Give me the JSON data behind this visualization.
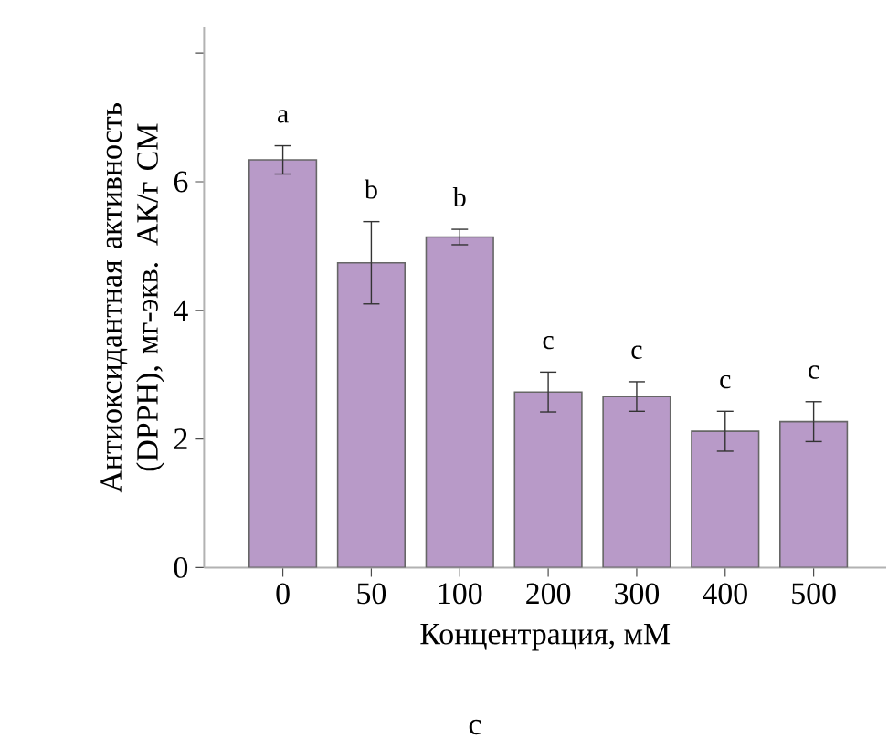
{
  "chart_data": {
    "type": "bar",
    "xlabel": "Концентрация, мМ",
    "ylabel": "Антиоксидантная активность (DPPH), мг-экв. АК/г СМ",
    "categories": [
      "0",
      "50",
      "100",
      "200",
      "300",
      "400",
      "500"
    ],
    "values": [
      6.34,
      4.74,
      5.14,
      2.73,
      2.66,
      2.12,
      2.27
    ],
    "errors": [
      0.22,
      0.64,
      0.12,
      0.31,
      0.23,
      0.31,
      0.31
    ],
    "color": "#b89ac8",
    "ylim": [
      0,
      8.4
    ],
    "yticks": [
      0,
      2,
      4,
      6,
      {
        "value": 8,
        "label": null
      }
    ],
    "annotations": [
      "a",
      "b",
      "b",
      "c",
      "c",
      "c",
      "c",
      "c"
    ]
  }
}
